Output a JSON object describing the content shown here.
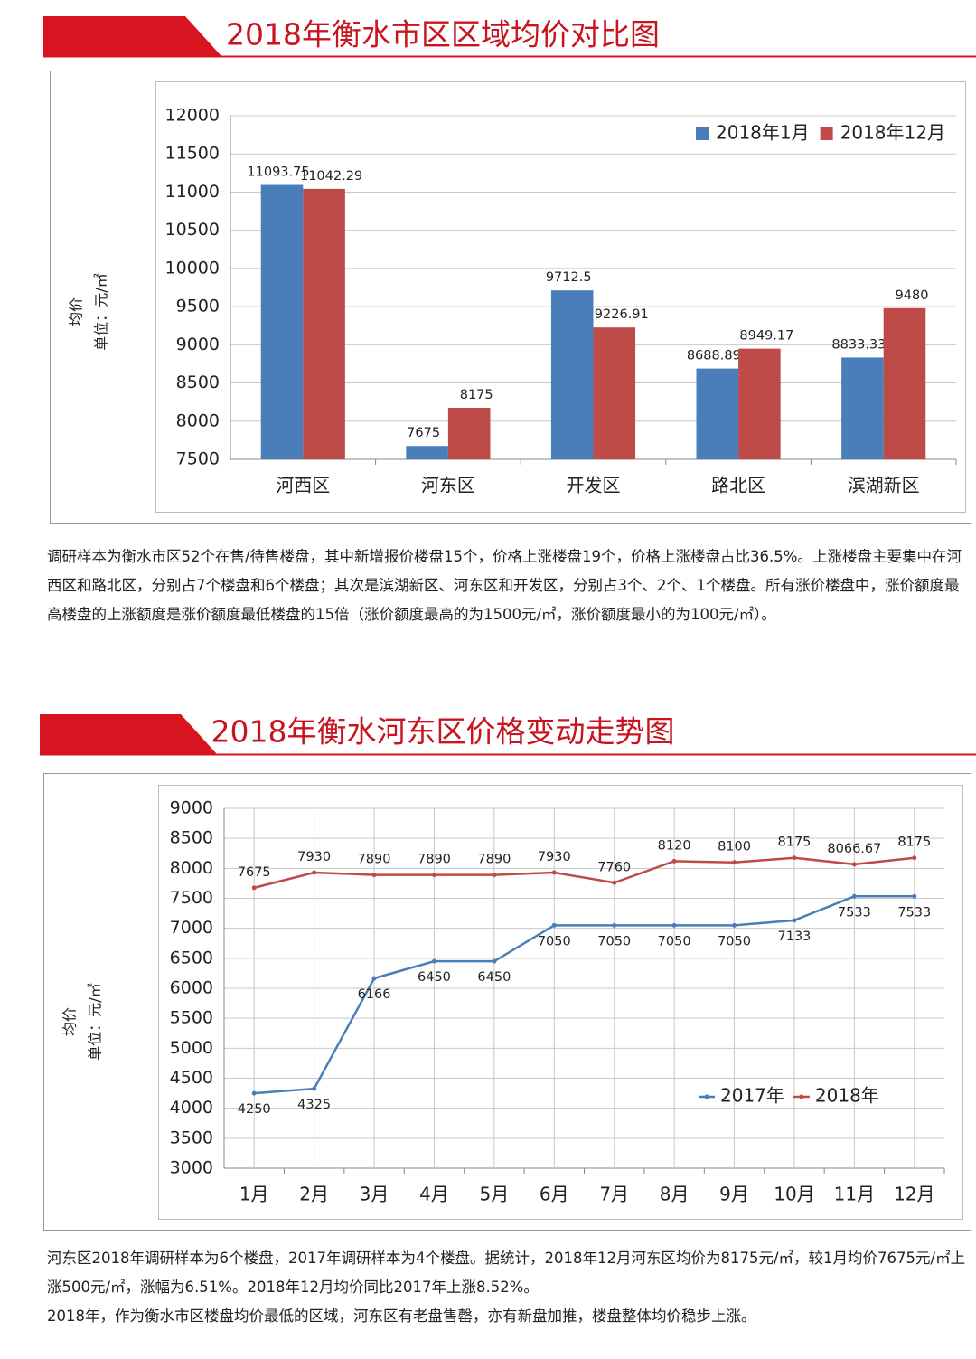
{
  "chart_data": [
    {
      "type": "bar",
      "title": "2018年衡水市区区域均价对比图",
      "y_label": "均价",
      "y_unit": "单位：元/㎡",
      "categories": [
        "河西区",
        "河东区",
        "开发区",
        "路北区",
        "滨湖新区"
      ],
      "series": [
        {
          "name": "2018年1月",
          "color": "#4a7ebb",
          "values": [
            11093.75,
            7675,
            9712.5,
            8688.89,
            8833.33
          ]
        },
        {
          "name": "2018年12月",
          "color": "#be4b48",
          "values": [
            11042.29,
            8175,
            9226.91,
            8949.17,
            9480
          ]
        }
      ],
      "ylim": [
        7500,
        12000
      ],
      "yticks": [
        7500,
        8000,
        8500,
        9000,
        9500,
        10000,
        10500,
        11000,
        11500,
        12000
      ],
      "grid": true,
      "legend": "upper right"
    },
    {
      "type": "line",
      "title": "2018年衡水河东区价格变动走势图",
      "y_label": "均价",
      "y_unit": "单位：元/㎡",
      "categories": [
        "1月",
        "2月",
        "3月",
        "4月",
        "5月",
        "6月",
        "7月",
        "8月",
        "9月",
        "10月",
        "11月",
        "12月"
      ],
      "series": [
        {
          "name": "2017年",
          "color": "#4a7ebb",
          "values": [
            4250,
            4325,
            6166,
            6450,
            6450,
            7050,
            7050,
            7050,
            7050,
            7133,
            7533,
            7533
          ]
        },
        {
          "name": "2018年",
          "color": "#be4b48",
          "values": [
            7675,
            7930,
            7890,
            7890,
            7890,
            7930,
            7760,
            8120,
            8100,
            8175,
            8066.67,
            8175
          ]
        }
      ],
      "ylim": [
        3000,
        9000
      ],
      "yticks": [
        3000,
        3500,
        4000,
        4500,
        5000,
        5500,
        6000,
        6500,
        7000,
        7500,
        8000,
        8500,
        9000
      ],
      "grid": true,
      "legend": "lower right"
    }
  ],
  "texts": [
    "调研样本为衡水市区52个在售/待售楼盘，其中新增报价楼盘15个，价格上涨楼盘19个，价格上涨楼盘占比36.5%。上涨楼盘主要集中在河西区和路北区，分别占7个楼盘和6个楼盘；其次是滨湖新区、河东区和开发区，分别占3个、2个、1个楼盘。所有涨价楼盘中，涨价额度最高楼盘的上涨额度是涨价额度最低楼盘的15倍（涨价额度最高的为1500元/㎡，涨价额度最小的为100元/㎡）。",
    "河东区2018年调研样本为6个楼盘，2017年调研样本为4个楼盘。据统计，2018年12月河东区均价为8175元/㎡，较1月均价7675元/㎡上涨500元/㎡，涨幅为6.51%。2018年12月均价同比2017年上涨8.52%。",
    "2018年，作为衡水市区楼盘均价最低的区域，河东区有老盘售罄，亦有新盘加推，楼盘整体均价稳步上涨。"
  ]
}
